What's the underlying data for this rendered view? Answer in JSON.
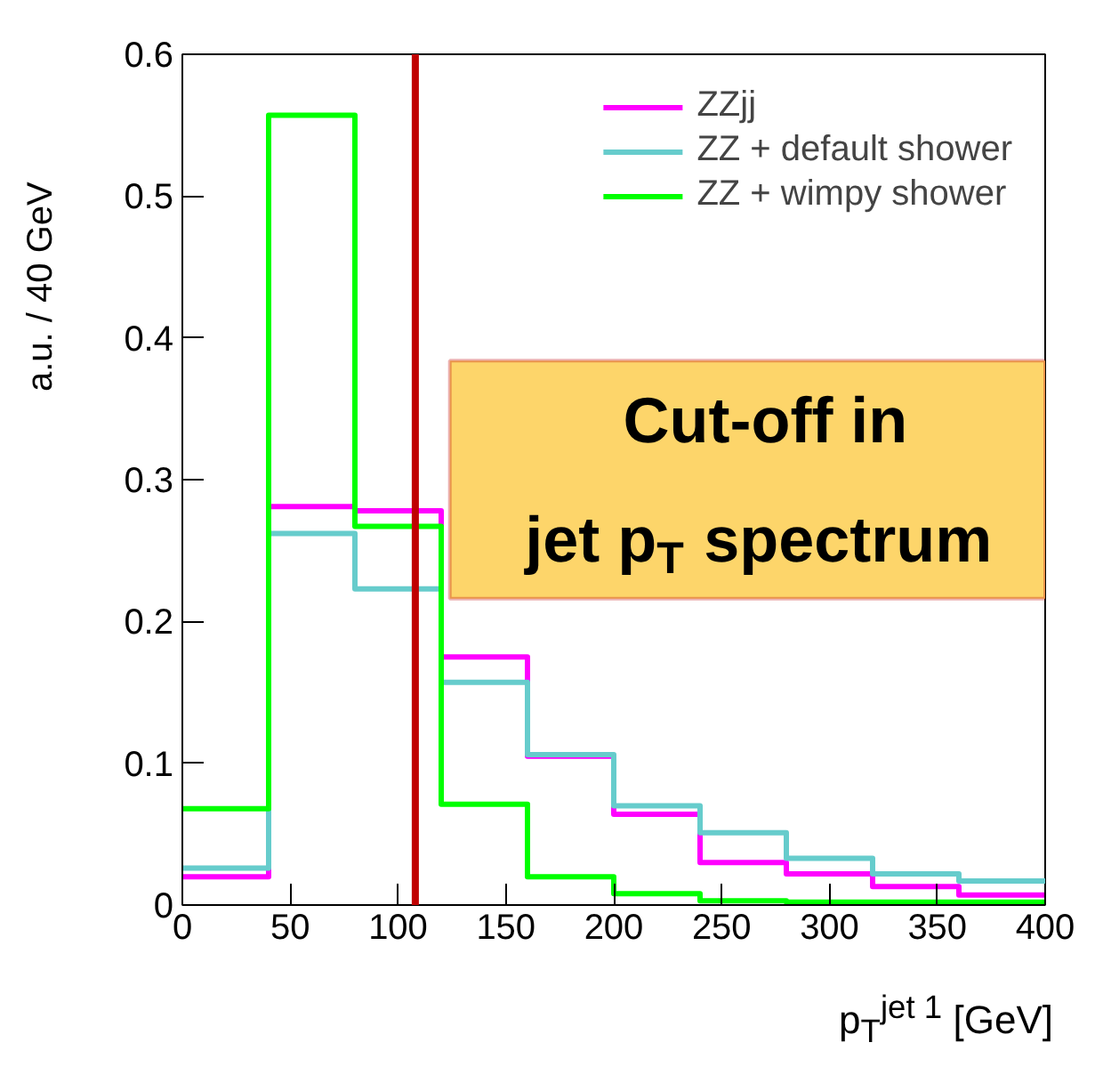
{
  "chart_data": {
    "type": "histogram",
    "xlabel": "p$_{T}$$^{jet 1}$ [GeV]",
    "ylabel": "a.u. / 40 GeV",
    "bins": [
      0,
      40,
      80,
      120,
      160,
      200,
      240,
      280,
      320,
      360,
      400
    ],
    "series": [
      {
        "name": "ZZjj",
        "color": "#ff00ff",
        "values": [
          0.02,
          0.281,
          0.278,
          0.175,
          0.105,
          0.064,
          0.03,
          0.022,
          0.013,
          0.007
        ]
      },
      {
        "name": "ZZ + default shower",
        "color": "#66cccc",
        "values": [
          0.026,
          0.262,
          0.223,
          0.157,
          0.106,
          0.07,
          0.051,
          0.033,
          0.022,
          0.017
        ]
      },
      {
        "name": "ZZ + wimpy shower",
        "color": "#00ff00",
        "values": [
          0.068,
          0.557,
          0.267,
          0.071,
          0.02,
          0.008,
          0.003,
          0.002,
          0.002,
          0.002
        ]
      }
    ],
    "xlim": [
      0,
      400
    ],
    "ylim": [
      0,
      0.6
    ],
    "xticks": [
      0,
      50,
      100,
      150,
      200,
      250,
      300,
      350,
      400
    ],
    "yticks": [
      0,
      0.1,
      0.2,
      0.3,
      0.4,
      0.5,
      0.6
    ],
    "grid": false,
    "legend": "top right",
    "ref_lines": [
      {
        "axis": "x",
        "value": 108,
        "color": "#c00000"
      }
    ],
    "annotations": [
      "Cut-off in\njet p$_{T}$ spectrum"
    ]
  }
}
